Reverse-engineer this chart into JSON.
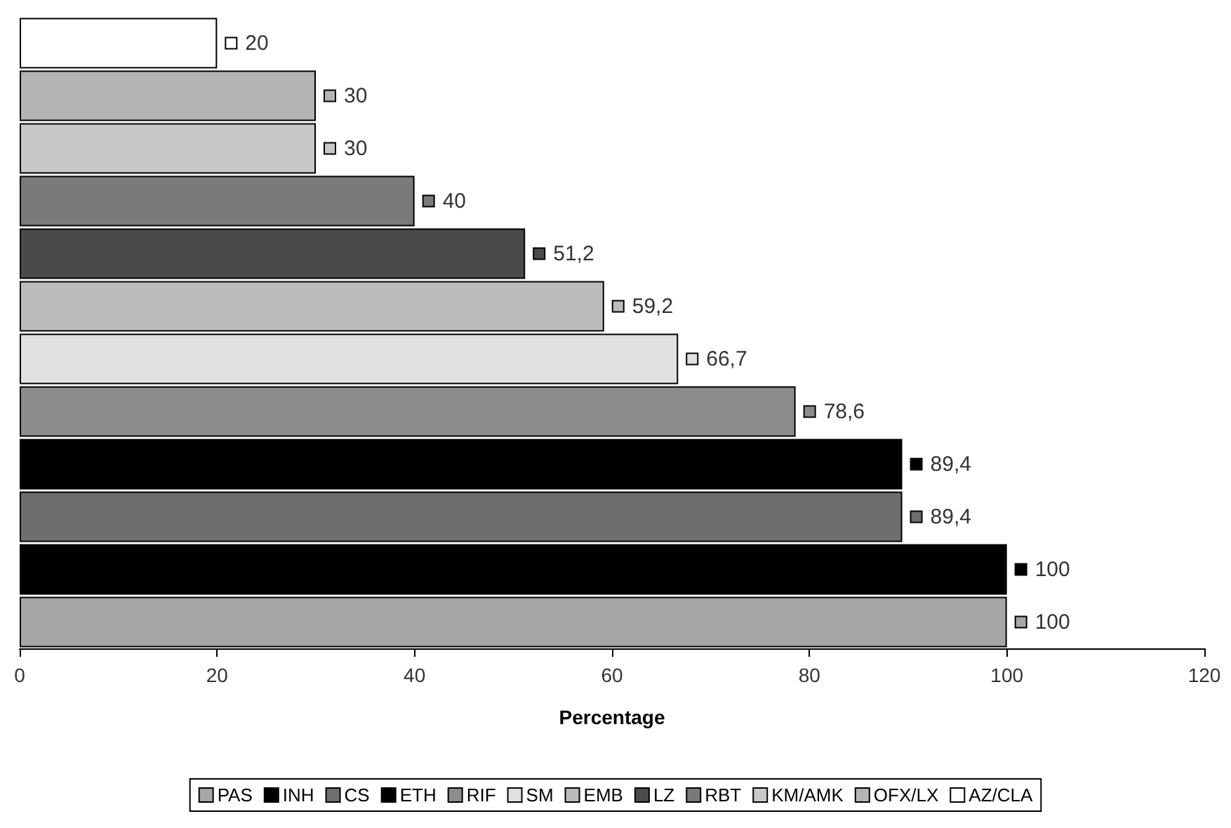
{
  "chart_data": {
    "type": "bar",
    "orientation": "horizontal",
    "xlabel": "Percentage",
    "xlim": [
      0,
      120
    ],
    "xticks": [
      0,
      20,
      40,
      60,
      80,
      100,
      120
    ],
    "grid": false,
    "legend": "bottom",
    "stacked": true,
    "categories": [
      null,
      null,
      null,
      null,
      null,
      null,
      null,
      null,
      null,
      null,
      null,
      null
    ],
    "series": [
      {
        "name": "PAS",
        "color": "#a6a6a6",
        "values": [
          null,
          null,
          null,
          null,
          null,
          null,
          null,
          null,
          null,
          null,
          null,
          100
        ],
        "value_labels": [
          null,
          null,
          null,
          null,
          null,
          null,
          null,
          null,
          null,
          null,
          null,
          "100"
        ]
      },
      {
        "name": "INH",
        "color": "#000000",
        "values": [
          null,
          null,
          null,
          null,
          null,
          null,
          null,
          null,
          null,
          null,
          100,
          null
        ],
        "value_labels": [
          null,
          null,
          null,
          null,
          null,
          null,
          null,
          null,
          null,
          null,
          "100",
          null
        ]
      },
      {
        "name": "CS",
        "color": "#6e6e6e",
        "values": [
          null,
          null,
          null,
          null,
          null,
          null,
          null,
          null,
          null,
          89.4,
          null,
          null
        ],
        "value_labels": [
          null,
          null,
          null,
          null,
          null,
          null,
          null,
          null,
          null,
          "89,4",
          null,
          null
        ]
      },
      {
        "name": "ETH",
        "color": "#000000",
        "values": [
          null,
          null,
          null,
          null,
          null,
          null,
          null,
          null,
          89.4,
          null,
          null,
          null
        ],
        "value_labels": [
          null,
          null,
          null,
          null,
          null,
          null,
          null,
          null,
          "89,4",
          null,
          null,
          null
        ]
      },
      {
        "name": "RIF",
        "color": "#8c8c8c",
        "values": [
          null,
          null,
          null,
          null,
          null,
          null,
          null,
          78.6,
          null,
          null,
          null,
          null
        ],
        "value_labels": [
          null,
          null,
          null,
          null,
          null,
          null,
          null,
          "78,6",
          null,
          null,
          null,
          null
        ]
      },
      {
        "name": "SM",
        "color": "#e0e0e0",
        "values": [
          null,
          null,
          null,
          null,
          null,
          null,
          66.7,
          null,
          null,
          null,
          null,
          null
        ],
        "value_labels": [
          null,
          null,
          null,
          null,
          null,
          null,
          "66,7",
          null,
          null,
          null,
          null,
          null
        ]
      },
      {
        "name": "EMB",
        "color": "#bcbcbc",
        "values": [
          null,
          null,
          null,
          null,
          null,
          59.2,
          null,
          null,
          null,
          null,
          null,
          null
        ],
        "value_labels": [
          null,
          null,
          null,
          null,
          null,
          "59,2",
          null,
          null,
          null,
          null,
          null,
          null
        ]
      },
      {
        "name": "LZ",
        "color": "#4a4a4a",
        "values": [
          null,
          null,
          null,
          null,
          51.2,
          null,
          null,
          null,
          null,
          null,
          null,
          null
        ],
        "value_labels": [
          null,
          null,
          null,
          null,
          "51,2",
          null,
          null,
          null,
          null,
          null,
          null,
          null
        ]
      },
      {
        "name": "RBT",
        "color": "#7a7a7a",
        "values": [
          null,
          null,
          null,
          40,
          null,
          null,
          null,
          null,
          null,
          null,
          null,
          null
        ],
        "value_labels": [
          null,
          null,
          null,
          "40",
          null,
          null,
          null,
          null,
          null,
          null,
          null,
          null
        ]
      },
      {
        "name": "KM/AMK",
        "color": "#c8c8c8",
        "values": [
          null,
          null,
          30,
          null,
          null,
          null,
          null,
          null,
          null,
          null,
          null,
          null
        ],
        "value_labels": [
          null,
          null,
          "30",
          null,
          null,
          null,
          null,
          null,
          null,
          null,
          null,
          null
        ]
      },
      {
        "name": "OFX/LX",
        "color": "#b4b4b4",
        "values": [
          null,
          30,
          null,
          null,
          null,
          null,
          null,
          null,
          null,
          null,
          null,
          null
        ],
        "value_labels": [
          null,
          "30",
          null,
          null,
          null,
          null,
          null,
          null,
          null,
          null,
          null,
          null
        ]
      },
      {
        "name": "AZ/CLA",
        "color": "#ffffff",
        "values": [
          20,
          null,
          null,
          null,
          null,
          null,
          null,
          null,
          null,
          null,
          null,
          null
        ],
        "value_labels": [
          "20",
          null,
          null,
          null,
          null,
          null,
          null,
          null,
          null,
          null,
          null,
          null
        ]
      }
    ]
  }
}
